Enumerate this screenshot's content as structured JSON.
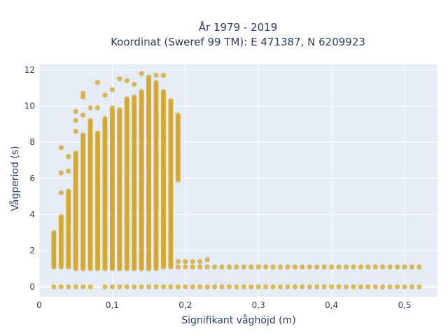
{
  "chart_data": {
    "type": "scatter",
    "title_line1": "År 1979 - 2019",
    "title_line2": "Koordinat (Sweref 99 TM): E 471387, N 6209923",
    "xlabel": "Signifikant våghöjd (m)",
    "ylabel": "Vågperiod (s)",
    "xlim": [
      0,
      0.545
    ],
    "ylim": [
      -0.55,
      12.3
    ],
    "xticks": [
      0,
      0.1,
      0.2,
      0.3,
      0.4,
      0.5
    ],
    "xtick_labels": [
      "0",
      "0,1",
      "0,2",
      "0,3",
      "0,4",
      "0,5"
    ],
    "yticks": [
      0,
      2,
      4,
      6,
      8,
      10,
      12
    ],
    "ytick_labels": [
      "0",
      "2",
      "4",
      "6",
      "8",
      "10",
      "12"
    ],
    "grid": true,
    "background": "#e5ecf6",
    "marker_color": "#d4a72c",
    "x_step": 0.01,
    "series": [
      {
        "columns": [
          {
            "x": 0.02,
            "y_range": [
              1.1,
              3.0
            ],
            "extra_y": [
              0
            ]
          },
          {
            "x": 0.03,
            "y_range": [
              1.1,
              3.9
            ],
            "extra_y": [
              0,
              5.2,
              6.3,
              7.7
            ]
          },
          {
            "x": 0.04,
            "y_range": [
              1.1,
              5.3
            ],
            "extra_y": [
              0,
              6.4,
              7.2
            ]
          },
          {
            "x": 0.05,
            "y_range": [
              1.0,
              7.4
            ],
            "extra_y": [
              0,
              8.6,
              9.2,
              9.7
            ]
          },
          {
            "x": 0.06,
            "y_range": [
              1.0,
              8.4
            ],
            "extra_y": [
              0,
              9.5,
              10.5,
              10.7
            ]
          },
          {
            "x": 0.07,
            "y_range": [
              1.0,
              9.2
            ],
            "extra_y": [
              0,
              9.9
            ]
          },
          {
            "x": 0.08,
            "y_range": [
              1.0,
              8.5
            ],
            "extra_y": [
              9.9,
              11.3
            ]
          },
          {
            "x": 0.09,
            "y_range": [
              1.0,
              9.3
            ],
            "extra_y": [
              0,
              10.6
            ]
          },
          {
            "x": 0.1,
            "y_range": [
              1.0,
              9.9
            ],
            "extra_y": [
              0,
              10.9
            ]
          },
          {
            "x": 0.11,
            "y_range": [
              1.0,
              9.8
            ],
            "extra_y": [
              0,
              11.5
            ]
          },
          {
            "x": 0.12,
            "y_range": [
              1.0,
              10.4
            ],
            "extra_y": [
              0,
              11.4
            ]
          },
          {
            "x": 0.13,
            "y_range": [
              1.0,
              10.5
            ],
            "extra_y": [
              0,
              11.2
            ]
          },
          {
            "x": 0.14,
            "y_range": [
              1.0,
              10.8
            ],
            "extra_y": [
              0,
              11.8
            ]
          },
          {
            "x": 0.15,
            "y_range": [
              1.0,
              11.6
            ],
            "extra_y": [
              0
            ]
          },
          {
            "x": 0.16,
            "y_range": [
              1.0,
              11.3
            ],
            "extra_y": [
              0,
              11.7
            ]
          },
          {
            "x": 0.17,
            "y_range": [
              1.1,
              10.8
            ],
            "extra_y": [
              0,
              3.2,
              11.7
            ]
          },
          {
            "x": 0.18,
            "y_range": [
              1.1,
              10.3
            ],
            "extra_y": [
              0
            ]
          },
          {
            "x": 0.19,
            "y_range": [
              5.9,
              9.5
            ],
            "extra_y": [
              0,
              1.1,
              1.4
            ]
          },
          {
            "x": 0.2,
            "y_range": [],
            "extra_y": [
              0,
              1.1,
              1.4
            ]
          },
          {
            "x": 0.21,
            "y_range": [],
            "extra_y": [
              0,
              1.1,
              1.4
            ]
          },
          {
            "x": 0.22,
            "y_range": [],
            "extra_y": [
              0,
              1.1,
              1.4
            ]
          },
          {
            "x": 0.23,
            "y_range": [],
            "extra_y": [
              0,
              1.1,
              1.5
            ]
          },
          {
            "x": 0.24,
            "y_range": [],
            "extra_y": [
              0,
              1.1
            ]
          }
        ],
        "tail_x_range": [
          0.25,
          0.52
        ],
        "tail_y": [
          0,
          1.1
        ]
      }
    ]
  }
}
